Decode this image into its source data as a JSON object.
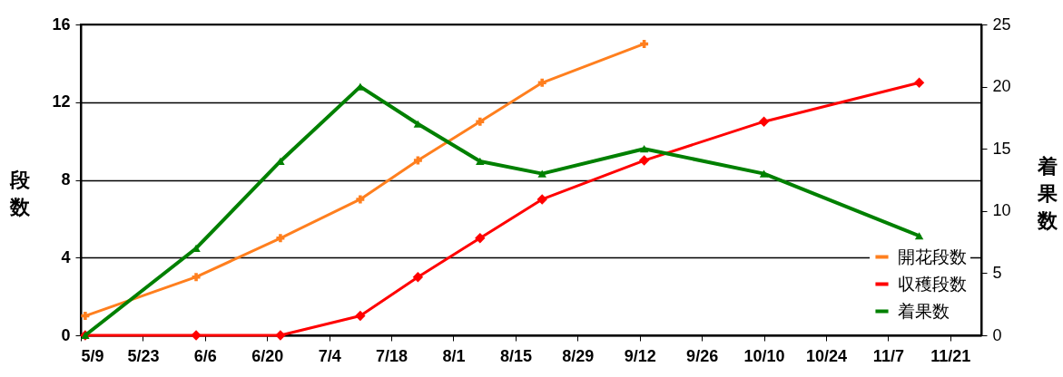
{
  "chart_data": {
    "type": "line",
    "ylabel": "段数",
    "y2label": "着果数",
    "x": [
      "--05-10",
      "--06-04",
      "--06-23",
      "--07-11",
      "--07-24",
      "--08-07",
      "--08-21",
      "--09-13",
      "--10-10",
      "--11-14"
    ],
    "series": [
      {
        "name": "開花段数",
        "color": "#ff7f1e",
        "marker": "cross",
        "values": [
          1,
          3,
          5,
          7,
          9,
          11,
          13,
          15,
          null,
          null
        ]
      },
      {
        "name": "収穫段数",
        "color": "#ff0000",
        "marker": "diamond",
        "values": [
          0,
          0,
          0,
          1,
          3,
          5,
          7,
          9,
          11,
          13
        ]
      },
      {
        "name": "着果数",
        "color": "#008000",
        "marker": "triangle",
        "axis": "y2",
        "values": [
          0,
          7,
          14,
          20,
          17,
          14,
          13,
          15,
          13,
          8
        ]
      }
    ],
    "xlim": [
      "--05-09",
      "--11-28"
    ],
    "xticks": [
      {
        "value": "--05-09",
        "label": "5/9"
      },
      {
        "value": "--05-23",
        "label": "5/23"
      },
      {
        "value": "--06-06",
        "label": "6/6"
      },
      {
        "value": "--06-20",
        "label": "6/20"
      },
      {
        "value": "--07-04",
        "label": "7/4"
      },
      {
        "value": "--07-18",
        "label": "7/18"
      },
      {
        "value": "--08-01",
        "label": "8/1"
      },
      {
        "value": "--08-15",
        "label": "8/15"
      },
      {
        "value": "--08-29",
        "label": "8/29"
      },
      {
        "value": "--09-12",
        "label": "9/12"
      },
      {
        "value": "--09-26",
        "label": "9/26"
      },
      {
        "value": "--10-10",
        "label": "10/10"
      },
      {
        "value": "--10-24",
        "label": "10/24"
      },
      {
        "value": "--11-07",
        "label": "11/7"
      },
      {
        "value": "--11-21",
        "label": "11/21"
      }
    ],
    "ylim": [
      0,
      16
    ],
    "yticks": [
      0,
      4,
      8,
      12,
      16
    ],
    "y2lim": [
      0,
      25
    ],
    "y2ticks": [
      0,
      5,
      10,
      15,
      20,
      25
    ],
    "grid": "y",
    "legend": "bottom right",
    "line_style": "solid"
  }
}
